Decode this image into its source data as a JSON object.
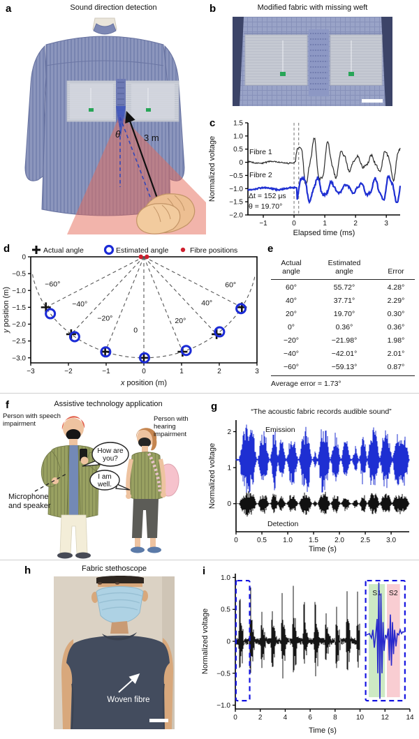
{
  "panels": {
    "a": {
      "label": "a",
      "title": "Sound direction detection",
      "theta_symbol": "θ",
      "distance_label": "3 m"
    },
    "b": {
      "label": "b",
      "title": "Modified fabric with missing weft"
    },
    "c": {
      "label": "c"
    },
    "d": {
      "label": "d"
    },
    "e": {
      "label": "e"
    },
    "f": {
      "label": "f",
      "title": "Assistive technology application",
      "left_person": "Person with speech impairment",
      "right_person": "Person with hearing impairment",
      "bubble1": [
        "How are",
        "you?"
      ],
      "bubble2": [
        "I am",
        "well."
      ],
      "mic_label": [
        "Microphone",
        "and speaker"
      ]
    },
    "g": {
      "label": "g"
    },
    "h": {
      "label": "h",
      "title": "Fabric stethoscope",
      "annotation": "Woven fibre"
    },
    "i": {
      "label": "i"
    }
  },
  "chart_data": [
    {
      "panel": "c",
      "type": "line",
      "xlabel": "Elapsed time (ms)",
      "ylabel": "Normalized voltage",
      "xlim": [
        -1.5,
        3.45
      ],
      "ylim": [
        -2.0,
        1.5
      ],
      "xticks": [
        -1,
        0,
        1,
        2,
        3
      ],
      "xticklabels": [
        "−1",
        "0",
        "1",
        "2",
        "3"
      ],
      "yticks": [
        1.5,
        1.0,
        0.5,
        0,
        -0.5,
        -1.0,
        -1.5,
        -2.0
      ],
      "yticklabels": [
        "1.5",
        "1.0",
        "0.5",
        "0",
        "−0.5",
        "−1.0",
        "−1.5",
        "−2.0"
      ],
      "vlines": [
        0,
        0.15
      ],
      "series": [
        {
          "name": "Fibre 1",
          "color": "#2b2b2b",
          "baseline": 0,
          "onset": 0.05,
          "amplitude": 0.8,
          "period": 0.47,
          "width": 1.2
        },
        {
          "name": "Fibre 2",
          "color": "#1e2fd2",
          "baseline": -1.0,
          "onset": 0.1,
          "amplitude": 0.5,
          "period": 0.47,
          "width": 2.2
        }
      ],
      "annotations": [
        "Δt = 152 μs",
        "θ = 19.70°"
      ]
    },
    {
      "panel": "d",
      "type": "scatter",
      "xlabel": "x position (m)",
      "ylabel": "y position (m)",
      "xlim": [
        -3,
        3
      ],
      "ylim": [
        -3.15,
        0
      ],
      "xticks": [
        -3,
        -2,
        -1,
        0,
        1,
        2,
        3
      ],
      "xticklabels": [
        "−3",
        "−2",
        "−1",
        "0",
        "1",
        "2",
        "3"
      ],
      "yticks": [
        0,
        -0.5,
        -1.0,
        -1.5,
        -2.0,
        -2.5,
        -3.0
      ],
      "yticklabels": [
        "0",
        "−0.5",
        "−1.0",
        "−1.5",
        "−2.0",
        "−2.5",
        "−3.0"
      ],
      "legend": [
        {
          "label": "Actual angle",
          "marker": "plus",
          "color": "#111111"
        },
        {
          "label": "Estimated angle",
          "marker": "ring",
          "color": "#1b2bd6"
        },
        {
          "label": "Fibre positions",
          "marker": "dot",
          "color": "#cf1f2e"
        }
      ],
      "radius_m": 3,
      "actual_angles_deg": [
        -60,
        -40,
        -20,
        0,
        20,
        40,
        60
      ],
      "estimated_angles_deg": [
        -55.72,
        -37.71,
        -19.7,
        0.36,
        21.98,
        42.01,
        59.13
      ],
      "ray_labels": [
        "−60°",
        "−40°",
        "−20°",
        "0",
        "20°",
        "40°",
        "60°"
      ],
      "ray_label_pos": [
        [
          -2.42,
          -0.88
        ],
        [
          -1.7,
          -1.47
        ],
        [
          -1.03,
          -1.9
        ],
        [
          -0.22,
          -2.25
        ],
        [
          0.97,
          -1.97
        ],
        [
          1.67,
          -1.44
        ],
        [
          2.3,
          -0.9
        ]
      ],
      "fibre_positions": [
        [
          -0.08,
          0
        ],
        [
          0.08,
          0
        ]
      ]
    },
    {
      "panel": "e",
      "type": "table",
      "headers": [
        [
          "Actual",
          "angle"
        ],
        [
          "Estimated",
          "angle"
        ],
        [
          "Error"
        ]
      ],
      "rows": [
        [
          "60°",
          "55.72°",
          "4.28°"
        ],
        [
          "40°",
          "37.71°",
          "2.29°"
        ],
        [
          "20°",
          "19.70°",
          "0.30°"
        ],
        [
          "0°",
          "0.36°",
          "0.36°"
        ],
        [
          "−20°",
          "−21.98°",
          "1.98°"
        ],
        [
          "−40°",
          "−42.01°",
          "2.01°"
        ],
        [
          "−60°",
          "−59.13°",
          "0.87°"
        ]
      ],
      "footer": "Average error = 1.73°"
    },
    {
      "panel": "g",
      "type": "waveform",
      "title": "“The acoustic fabric records audible sound”",
      "xlabel": "Time (s)",
      "ylabel": "Normalized voltage",
      "xlim": [
        0,
        3.35
      ],
      "ylim": [
        -0.78,
        2.32
      ],
      "xticks": [
        0,
        0.5,
        1.0,
        1.5,
        2.0,
        2.5,
        3.0
      ],
      "xticklabels": [
        "0",
        "0.5",
        "1.0",
        "1.5",
        "2.0",
        "2.5",
        "3.0"
      ],
      "yticks": [
        0,
        1,
        2
      ],
      "yticklabels": [
        "0",
        "1",
        "2"
      ],
      "bursts": [
        [
          0.08,
          0.38,
          1.0
        ],
        [
          0.44,
          0.62,
          0.8
        ],
        [
          0.68,
          0.8,
          0.9
        ],
        [
          0.82,
          0.95,
          0.6
        ],
        [
          1.0,
          1.18,
          0.75
        ],
        [
          1.24,
          1.45,
          0.95
        ],
        [
          1.5,
          1.56,
          0.35
        ],
        [
          1.6,
          1.8,
          1.0
        ],
        [
          1.85,
          2.0,
          0.8
        ],
        [
          2.05,
          2.2,
          0.6
        ],
        [
          2.26,
          2.36,
          0.4
        ],
        [
          2.4,
          2.52,
          0.75
        ],
        [
          2.56,
          2.76,
          0.9
        ],
        [
          2.8,
          3.0,
          0.85
        ],
        [
          3.04,
          3.33,
          0.85
        ]
      ],
      "series": [
        {
          "name": "Emission",
          "color": "#1e2fd2",
          "baseline": 1.22,
          "peak": 1.0
        },
        {
          "name": "Detection",
          "color": "#111111",
          "baseline": 0,
          "peak": 0.36
        }
      ]
    },
    {
      "panel": "i",
      "type": "waveform",
      "xlabel": "Time (s)",
      "ylabel": "Normalized voltage",
      "xlim": [
        0,
        14
      ],
      "ylim": [
        -1.06,
        1.06
      ],
      "xticks": [
        0,
        2,
        4,
        6,
        8,
        10,
        12,
        14
      ],
      "xticklabels": [
        "0",
        "2",
        "4",
        "6",
        "8",
        "10",
        "12",
        "14"
      ],
      "yticks": [
        1.0,
        0.5,
        0,
        -0.5,
        -1.0
      ],
      "yticklabels": [
        "1.0",
        "0.5",
        "0",
        "−0.5",
        "−1.0"
      ],
      "trace_color": "#161616",
      "beats": [
        [
          0.3,
          0.88
        ],
        [
          1.15,
          1.0
        ],
        [
          2.05,
          0.72
        ],
        [
          2.9,
          0.72
        ],
        [
          3.7,
          0.9
        ],
        [
          4.6,
          1.02
        ],
        [
          5.45,
          0.63
        ],
        [
          6.35,
          0.9
        ],
        [
          7.2,
          0.6
        ],
        [
          8.05,
          0.73
        ],
        [
          8.9,
          0.92
        ],
        [
          9.75,
          0.78
        ]
      ],
      "highlight_box": [
        0.05,
        1.15
      ],
      "zoom_box": [
        10.45,
        13.6
      ],
      "box_color": "#1414e0",
      "s1": {
        "label": "S1",
        "band": [
          10.7,
          12.0
        ],
        "color": "#cde9c4"
      },
      "s2": {
        "label": "S2",
        "band": [
          12.15,
          13.2
        ],
        "color": "#f9cdd2"
      },
      "zoom_trace_color": "#2929cc"
    }
  ],
  "colors": {
    "accent_blue": "#1e2fd2",
    "marker_red": "#cf1f2e",
    "shirt_blue": "#8c96bd",
    "fabric_grey": "#ccd0d9",
    "cone_red": "#e66a58",
    "olive": "#99a161",
    "skin": "#eec3a0",
    "mask_blue": "#aed2e4",
    "stetho_shirt": "#434c5e"
  }
}
